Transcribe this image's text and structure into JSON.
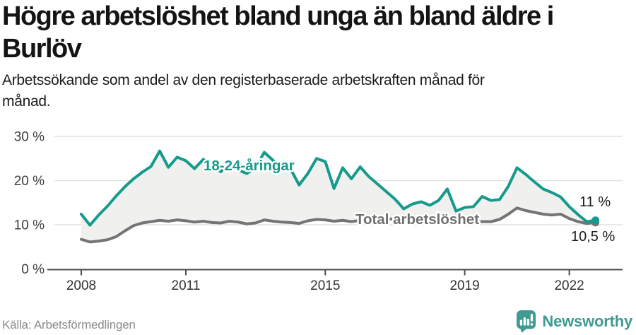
{
  "header": {
    "title": "Högre arbetslöshet bland unga än bland äldre i\nBurlöv",
    "subtitle": "Arbetssökande som andel av den registerbaserade arbetskraften månad för\nmånad."
  },
  "footer": {
    "source": "Källa: Arbetsförmedlingen",
    "brand": "Newsworthy"
  },
  "colors": {
    "accent_teal": "#169a8c",
    "line_gray": "#747474",
    "label_gray": "#6f6f6f",
    "fill_between": "#f0f0ef",
    "gridline": "#e2e2e2",
    "axis": "#4c4c4c",
    "tick_text": "#3d3d3d",
    "end_label_text": "#1a1a1a",
    "brand_teal": "#3f9a91"
  },
  "chart_data": {
    "type": "line",
    "title": "Högre arbetslöshet bland unga än bland äldre i Burlöv",
    "subtitle": "Arbetssökande som andel av den registerbaserade arbetskraften månad för månad.",
    "x_unit": "years (monthly data shown quarterly)",
    "x_start": 2008.0,
    "x_step_years": 0.25,
    "x_end": 2022.75,
    "x_ticks": [
      2008,
      2011,
      2015,
      2019,
      2022
    ],
    "y_ticks": [
      0,
      10,
      20,
      30
    ],
    "y_tick_suffix": " %",
    "ylim": [
      0,
      32
    ],
    "grid": "horizontal",
    "legend_position": "inline-labels",
    "series": [
      {
        "name": "18-24-åringar",
        "color": "#169a8c",
        "end_label": "11 %",
        "end_value": 11.0,
        "values": [
          12.4,
          9.9,
          12.2,
          14.2,
          16.5,
          18.6,
          20.4,
          21.9,
          23.2,
          26.7,
          23.0,
          25.3,
          24.5,
          22.7,
          24.8,
          23.3,
          22.0,
          23.8,
          22.4,
          21.6,
          23.0,
          26.4,
          24.6,
          22.4,
          22.7,
          19.0,
          21.6,
          25.0,
          24.3,
          18.2,
          22.9,
          20.4,
          23.1,
          20.9,
          19.2,
          17.5,
          15.8,
          13.6,
          14.7,
          15.2,
          14.4,
          15.5,
          18.1,
          13.1,
          13.9,
          14.1,
          16.4,
          15.5,
          15.7,
          18.7,
          22.9,
          21.4,
          19.7,
          18.1,
          17.3,
          16.3,
          14.1,
          12.3,
          10.7,
          11.0
        ]
      },
      {
        "name": "Total arbetslöshet",
        "color": "#747474",
        "end_label": "10,5 %",
        "end_value": 10.5,
        "values": [
          6.7,
          6.1,
          6.3,
          6.6,
          7.3,
          8.6,
          9.8,
          10.4,
          10.7,
          11.0,
          10.8,
          11.1,
          10.9,
          10.6,
          10.8,
          10.5,
          10.4,
          10.8,
          10.6,
          10.2,
          10.4,
          11.1,
          10.8,
          10.6,
          10.5,
          10.3,
          10.9,
          11.2,
          11.1,
          10.8,
          11.0,
          10.7,
          11.0,
          11.3,
          11.6,
          11.2,
          11.4,
          11.0,
          10.7,
          11.0,
          10.7,
          10.4,
          11.2,
          10.3,
          10.2,
          10.4,
          10.7,
          10.7,
          11.2,
          12.4,
          13.8,
          13.2,
          12.8,
          12.4,
          12.2,
          12.4,
          11.4,
          10.7,
          10.3,
          10.5
        ]
      }
    ]
  }
}
